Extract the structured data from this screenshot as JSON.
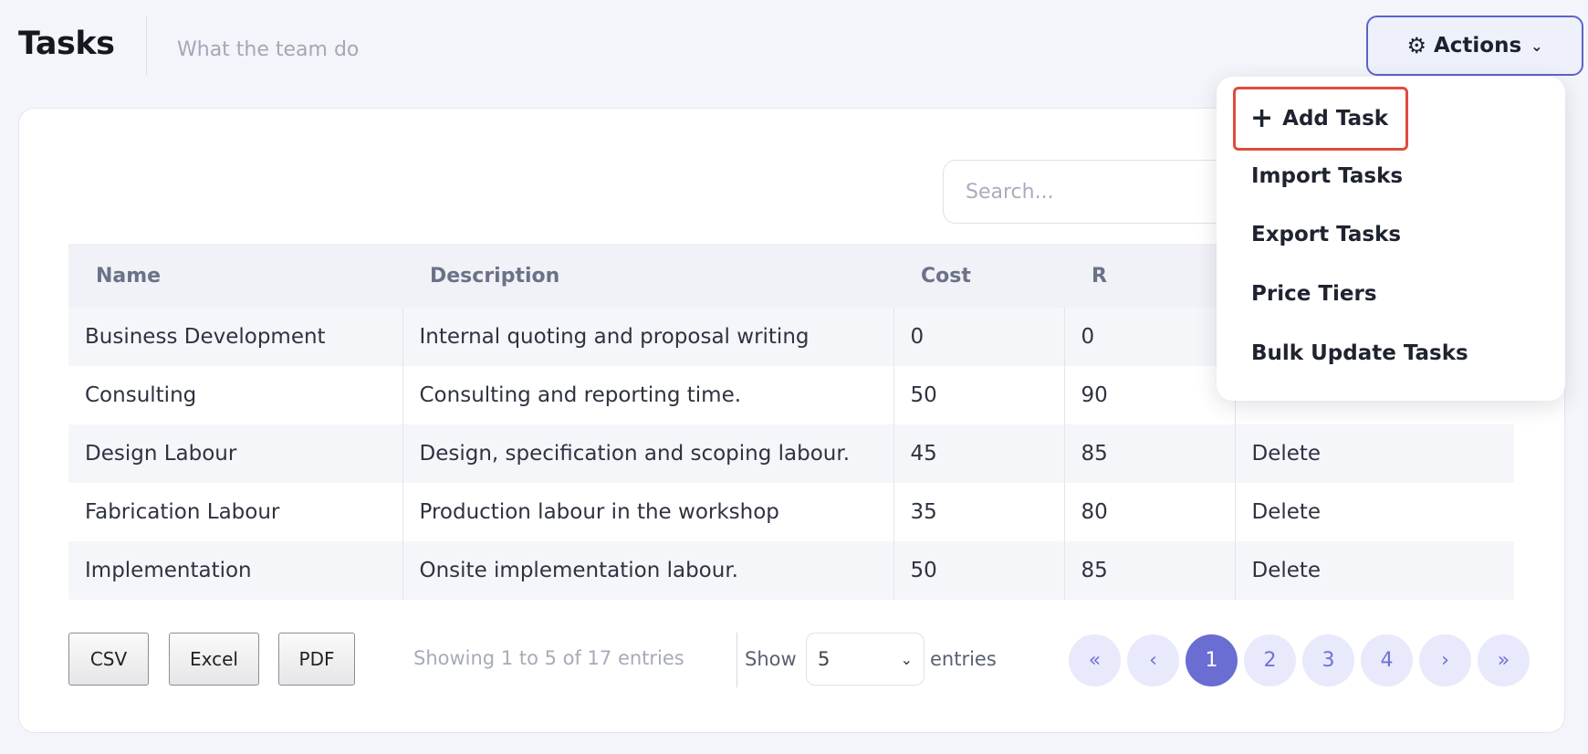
{
  "header": {
    "title": "Tasks",
    "subtitle": "What the team do",
    "actions_label": "Actions"
  },
  "dropdown": {
    "items": [
      {
        "label": "Add Task",
        "icon": "plus-icon"
      },
      {
        "label": "Import Tasks"
      },
      {
        "label": "Export Tasks"
      },
      {
        "label": "Price Tiers"
      },
      {
        "label": "Bulk Update Tasks"
      }
    ]
  },
  "search": {
    "placeholder": "Search..."
  },
  "table": {
    "columns": [
      "Name",
      "Description",
      "Cost",
      "R"
    ],
    "rows": [
      {
        "name": "Business Development",
        "description": "Internal quoting and proposal writing",
        "cost": "0",
        "rate": "0",
        "action": ""
      },
      {
        "name": "Consulting",
        "description": "Consulting and reporting time.",
        "cost": "50",
        "rate": "90",
        "action": ""
      },
      {
        "name": "Design Labour",
        "description": "Design, specification and scoping labour.",
        "cost": "45",
        "rate": "85",
        "action": "Delete"
      },
      {
        "name": "Fabrication Labour",
        "description": "Production labour in the workshop",
        "cost": "35",
        "rate": "80",
        "action": "Delete"
      },
      {
        "name": "Implementation",
        "description": "Onsite implementation labour.",
        "cost": "50",
        "rate": "85",
        "action": "Delete"
      }
    ]
  },
  "footer": {
    "export_buttons": [
      "CSV",
      "Excel",
      "PDF"
    ],
    "info": "Showing 1 to 5 of 17 entries",
    "show_label": "Show",
    "page_length": "5",
    "entries_label": "entries",
    "pagination": [
      "«",
      "‹",
      "1",
      "2",
      "3",
      "4",
      "›",
      "»"
    ],
    "current_page": "1"
  },
  "colors": {
    "accent": "#6a6dd2",
    "link": "#6c6fd6",
    "highlight_border": "#e14b3b"
  }
}
